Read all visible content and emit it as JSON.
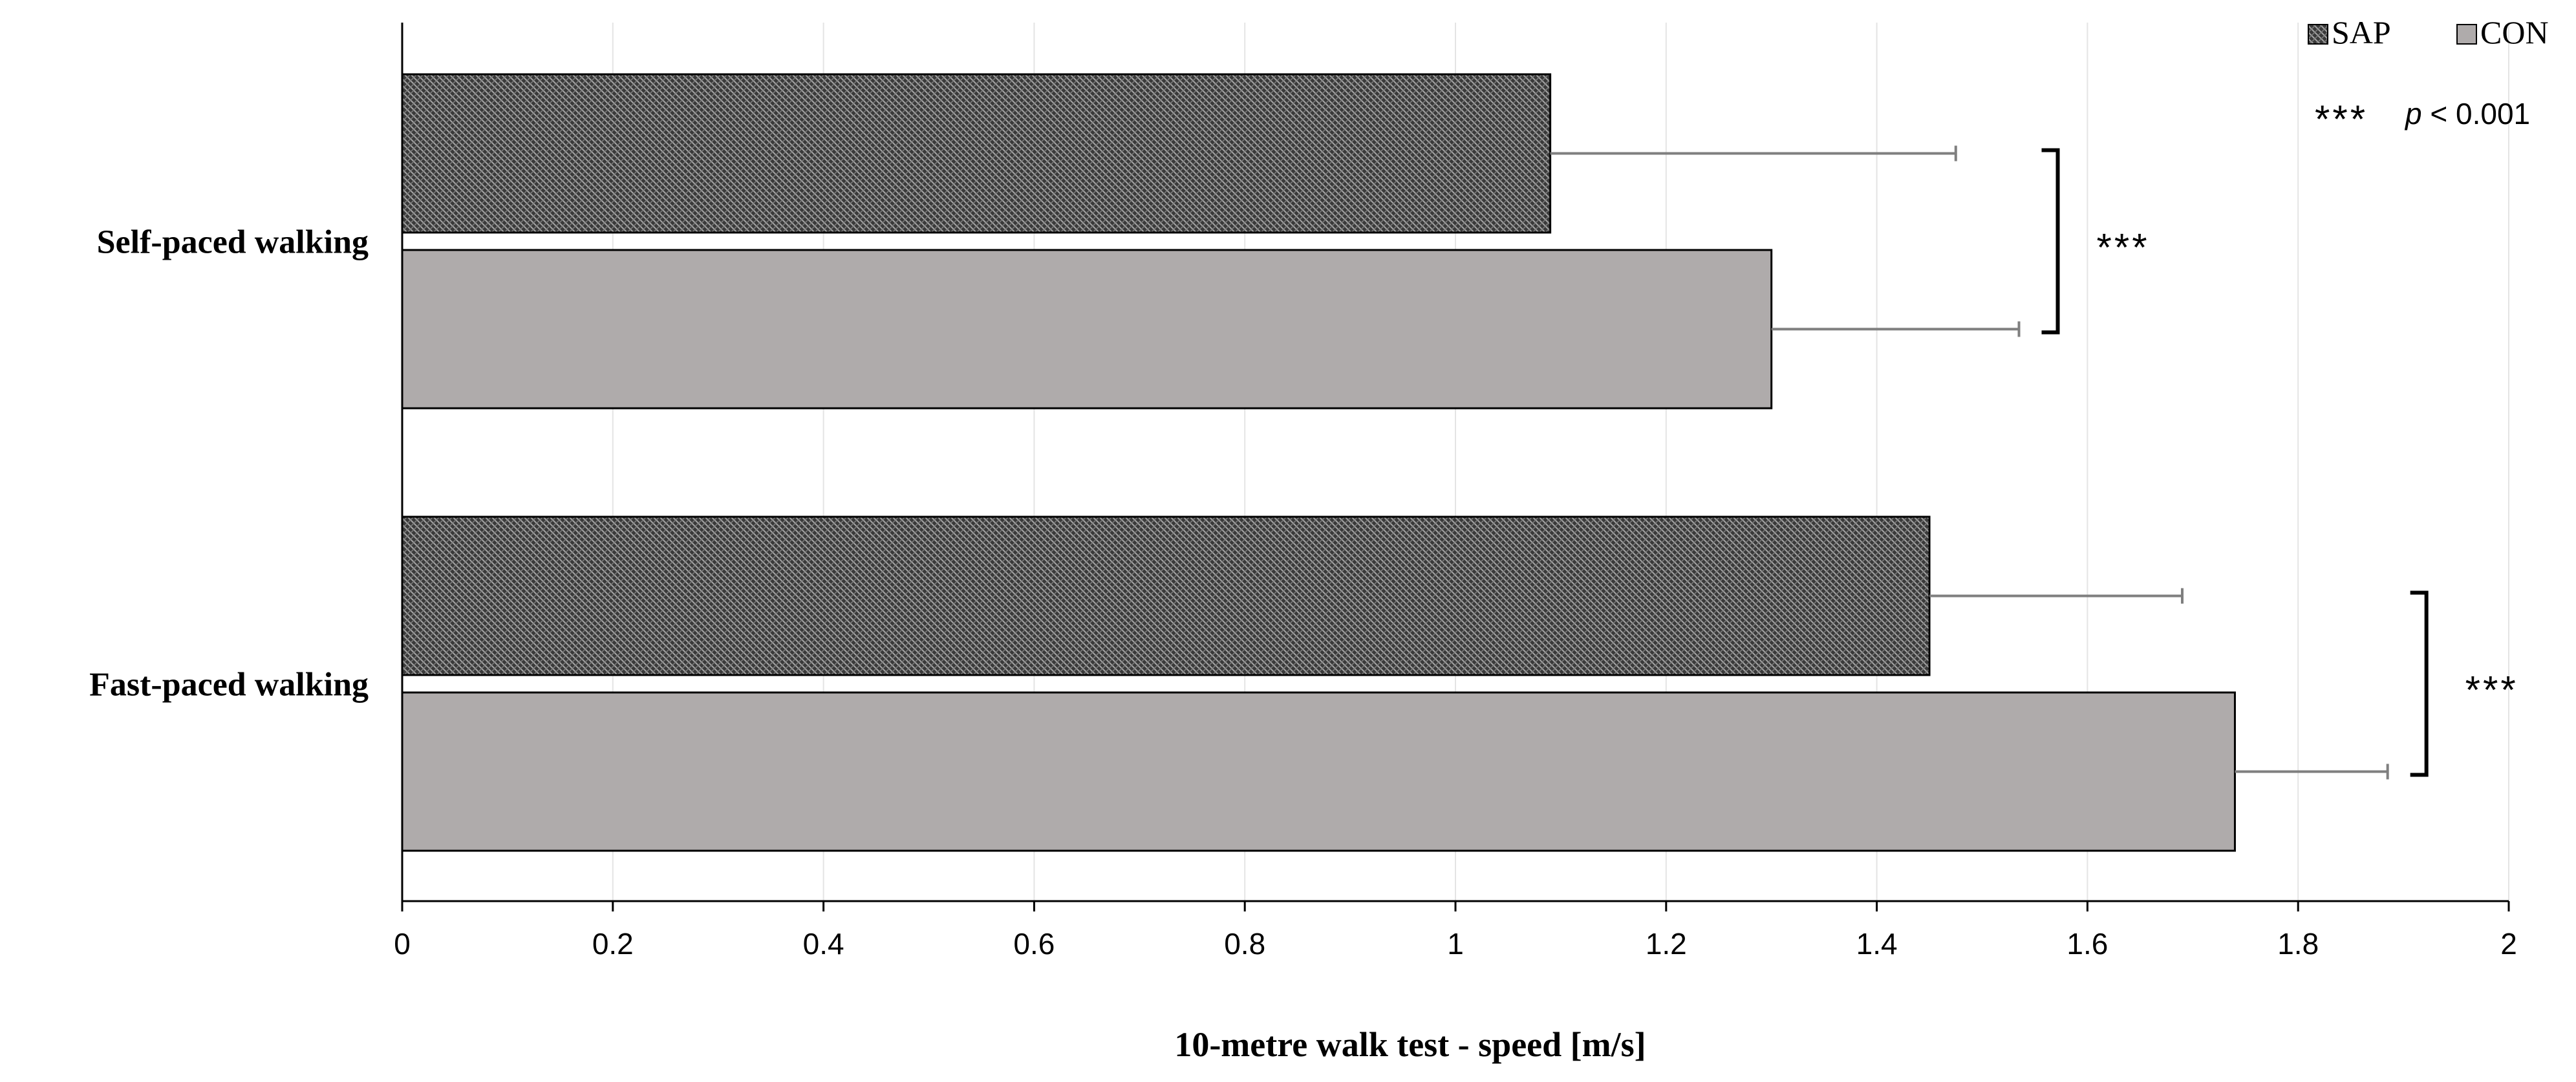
{
  "chart_data": {
    "type": "bar",
    "orientation": "horizontal",
    "categories": [
      "Self-paced walking",
      "Fast-paced walking"
    ],
    "series": [
      {
        "name": "SAP",
        "values": [
          1.09,
          1.45
        ],
        "error": [
          0.385,
          0.24
        ],
        "color": "#595959",
        "pattern": "crosshatch"
      },
      {
        "name": "CON",
        "values": [
          1.3,
          1.74
        ],
        "error": [
          0.235,
          0.145
        ],
        "color": "#afabab",
        "pattern": "solid"
      }
    ],
    "xlabel": "10-metre walk test - speed [m/s]",
    "xlim": [
      0,
      2
    ],
    "xticks": [
      0,
      0.2,
      0.4,
      0.6,
      0.8,
      1,
      1.2,
      1.4,
      1.6,
      1.8,
      2
    ],
    "xtick_labels": [
      "0",
      "0.2",
      "0.4",
      "0.6",
      "0.8",
      "1",
      "1.2",
      "1.4",
      "1.6",
      "1.8",
      "2"
    ],
    "grid": "vertical",
    "legend_position": "top-right",
    "significance": [
      {
        "category": "Self-paced walking",
        "label": "***"
      },
      {
        "category": "Fast-paced walking",
        "label": "***"
      }
    ],
    "note": {
      "stars": "***",
      "p_symbol": "p",
      "text": " < 0.001"
    }
  }
}
